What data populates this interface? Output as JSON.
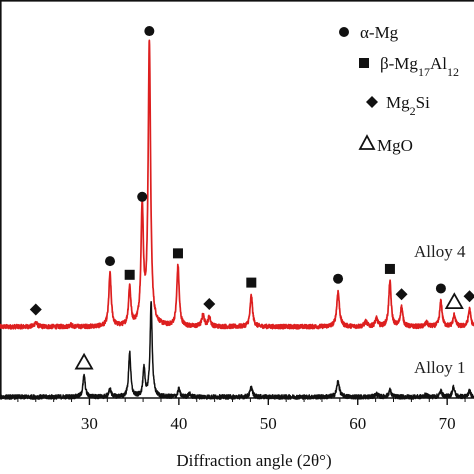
{
  "chart_data": {
    "type": "line",
    "title": "",
    "xlabel": "Diffraction angle (2θ°)",
    "ylabel": "",
    "xlim": [
      20,
      73
    ],
    "x_ticks": [
      30,
      40,
      50,
      60,
      70
    ],
    "grid": false,
    "legend": {
      "placement": "top-right",
      "entries": [
        {
          "marker": "circle",
          "label": "α-Mg"
        },
        {
          "marker": "square",
          "label": "β-Mg17Al12"
        },
        {
          "marker": "diamond",
          "label": "Mg2Si"
        },
        {
          "marker": "triangle-open",
          "label": "MgO"
        }
      ]
    },
    "series": [
      {
        "name": "Alloy 4",
        "label_text": "Alloy 4",
        "color": "#dd1f1f",
        "baseline": 0.36,
        "peaks": [
          {
            "x": 24.0,
            "h": 0.022,
            "w": 0.18
          },
          {
            "x": 27.9,
            "h": 0.01,
            "w": 0.15
          },
          {
            "x": 32.3,
            "h": 0.27,
            "w": 0.16
          },
          {
            "x": 34.5,
            "h": 0.2,
            "w": 0.15
          },
          {
            "x": 35.9,
            "h": 0.6,
            "w": 0.16
          },
          {
            "x": 36.7,
            "h": 1.45,
            "w": 0.16
          },
          {
            "x": 39.9,
            "h": 0.31,
            "w": 0.16
          },
          {
            "x": 42.7,
            "h": 0.06,
            "w": 0.16
          },
          {
            "x": 43.4,
            "h": 0.05,
            "w": 0.16
          },
          {
            "x": 48.1,
            "h": 0.16,
            "w": 0.16
          },
          {
            "x": 57.8,
            "h": 0.18,
            "w": 0.18
          },
          {
            "x": 60.9,
            "h": 0.025,
            "w": 0.18
          },
          {
            "x": 62.1,
            "h": 0.04,
            "w": 0.18
          },
          {
            "x": 63.6,
            "h": 0.23,
            "w": 0.16
          },
          {
            "x": 64.9,
            "h": 0.1,
            "w": 0.16
          },
          {
            "x": 67.7,
            "h": 0.02,
            "w": 0.18
          },
          {
            "x": 69.3,
            "h": 0.13,
            "w": 0.16
          },
          {
            "x": 70.8,
            "h": 0.06,
            "w": 0.16
          },
          {
            "x": 72.5,
            "h": 0.09,
            "w": 0.16
          }
        ]
      },
      {
        "name": "Alloy 1",
        "label_text": "Alloy 1",
        "color": "#111111",
        "baseline": 0.0,
        "peaks": [
          {
            "x": 29.4,
            "h": 0.11,
            "w": 0.15
          },
          {
            "x": 32.3,
            "h": 0.04,
            "w": 0.15
          },
          {
            "x": 34.5,
            "h": 0.23,
            "w": 0.14
          },
          {
            "x": 36.1,
            "h": 0.14,
            "w": 0.14
          },
          {
            "x": 36.9,
            "h": 0.48,
            "w": 0.14
          },
          {
            "x": 40.0,
            "h": 0.04,
            "w": 0.14
          },
          {
            "x": 41.2,
            "h": 0.015,
            "w": 0.15
          },
          {
            "x": 48.1,
            "h": 0.05,
            "w": 0.16
          },
          {
            "x": 57.8,
            "h": 0.08,
            "w": 0.18
          },
          {
            "x": 62.1,
            "h": 0.015,
            "w": 0.18
          },
          {
            "x": 63.6,
            "h": 0.035,
            "w": 0.16
          },
          {
            "x": 67.6,
            "h": 0.01,
            "w": 0.18
          },
          {
            "x": 69.3,
            "h": 0.03,
            "w": 0.16
          },
          {
            "x": 70.7,
            "h": 0.05,
            "w": 0.16
          },
          {
            "x": 72.5,
            "h": 0.03,
            "w": 0.16
          }
        ]
      }
    ],
    "peak_markers": [
      {
        "phase": "alpha-Mg",
        "marker": "circle",
        "x": 32.3,
        "series": "Alloy 4"
      },
      {
        "phase": "alpha-Mg",
        "marker": "circle",
        "x": 35.9,
        "series": "Alloy 4"
      },
      {
        "phase": "alpha-Mg",
        "marker": "circle",
        "x": 36.7,
        "series": "Alloy 4"
      },
      {
        "phase": "alpha-Mg",
        "marker": "circle",
        "x": 57.8,
        "series": "Alloy 4"
      },
      {
        "phase": "alpha-Mg",
        "marker": "circle",
        "x": 69.3,
        "series": "Alloy 4"
      },
      {
        "phase": "beta-Mg17Al12",
        "marker": "square",
        "x": 34.5,
        "series": "Alloy 4"
      },
      {
        "phase": "beta-Mg17Al12",
        "marker": "square",
        "x": 39.9,
        "series": "Alloy 4"
      },
      {
        "phase": "beta-Mg17Al12",
        "marker": "square",
        "x": 48.1,
        "series": "Alloy 4"
      },
      {
        "phase": "beta-Mg17Al12",
        "marker": "square",
        "x": 63.6,
        "series": "Alloy 4"
      },
      {
        "phase": "Mg2Si",
        "marker": "diamond",
        "x": 24.0,
        "series": "Alloy 4"
      },
      {
        "phase": "Mg2Si",
        "marker": "diamond",
        "x": 43.4,
        "series": "Alloy 4"
      },
      {
        "phase": "Mg2Si",
        "marker": "diamond",
        "x": 64.9,
        "series": "Alloy 4"
      },
      {
        "phase": "Mg2Si",
        "marker": "diamond",
        "x": 72.5,
        "series": "Alloy 4"
      },
      {
        "phase": "MgO",
        "marker": "triangle-open",
        "x": 70.8,
        "series": "Alloy 4"
      },
      {
        "phase": "MgO",
        "marker": "triangle-open",
        "x": 29.4,
        "series": "Alloy 1"
      }
    ]
  }
}
